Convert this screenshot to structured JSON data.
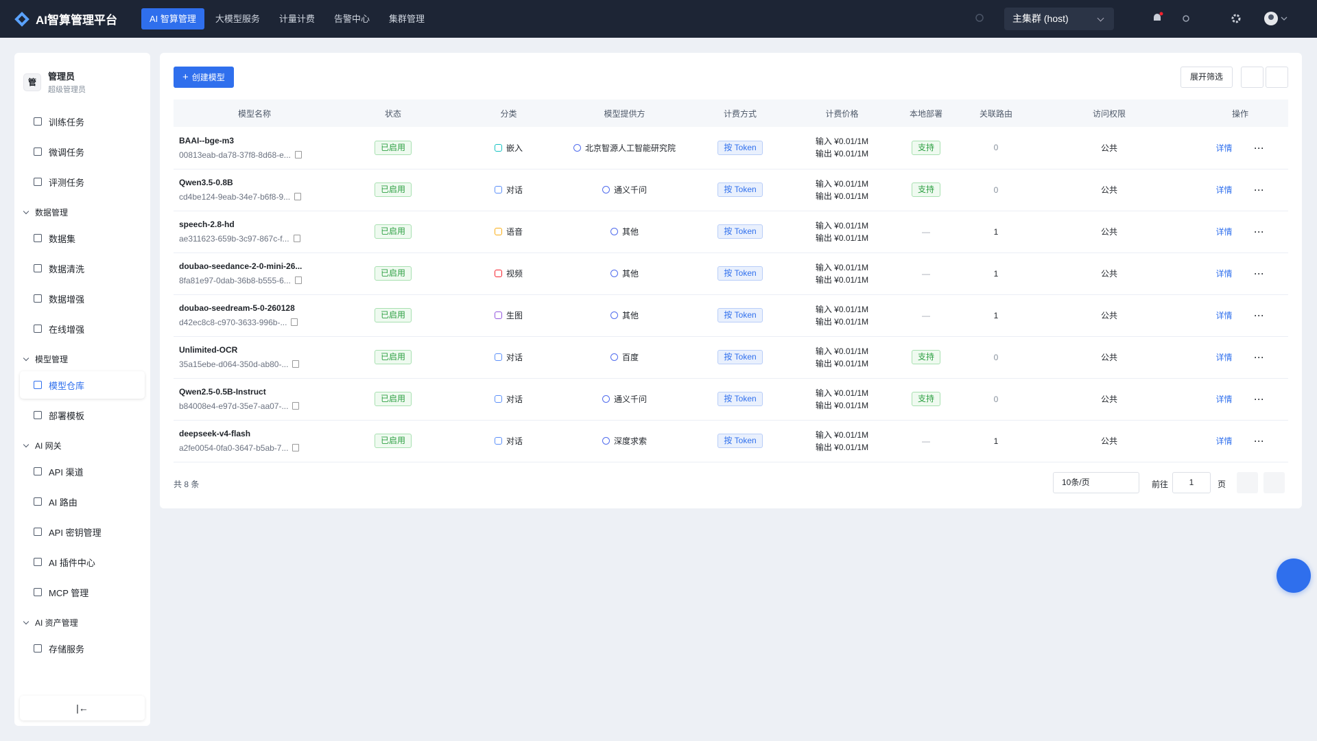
{
  "header": {
    "logo": "AI智算管理平台",
    "nav": [
      "AI 智算管理",
      "大模型服务",
      "计量计费",
      "告警中心",
      "集群管理"
    ],
    "cluster": "主集群 (host)"
  },
  "sidebar": {
    "avatar": "管",
    "user": "管理员",
    "role": "超级管理员",
    "top_items": [
      "训练任务",
      "微调任务",
      "评测任务"
    ],
    "groups": [
      {
        "title": "数据管理",
        "items": [
          "数据集",
          "数据清洗",
          "数据增强",
          "在线增强"
        ]
      },
      {
        "title": "模型管理",
        "items": [
          "模型仓库",
          "部署模板"
        ]
      },
      {
        "title": "AI 网关",
        "items": [
          "API 渠道",
          "AI 路由",
          "API 密钥管理",
          "AI 插件中心",
          "MCP 管理"
        ]
      },
      {
        "title": "AI 资产管理",
        "items": [
          "存储服务"
        ]
      }
    ]
  },
  "toolbar": {
    "create": "创建模型",
    "filter": "展开筛选"
  },
  "table": {
    "columns": [
      "模型名称",
      "状态",
      "分类",
      "模型提供方",
      "计费方式",
      "计费价格",
      "本地部署",
      "关联路由",
      "访问权限",
      "操作"
    ],
    "rows": [
      {
        "name": "BAAI--bge-m3",
        "id": "00813eab-da78-37f8-8d68-e...",
        "status": "已启用",
        "category": "嵌入",
        "provider": "北京智源人工智能研究院",
        "billing": "按 Token",
        "price_in": "输入 ¥0.01/1M",
        "price_out": "输出 ¥0.01/1M",
        "local": "支持",
        "routes": 0,
        "access": "公共",
        "action": "详情"
      },
      {
        "name": "Qwen3.5-0.8B",
        "id": "cd4be124-9eab-34e7-b6f8-9...",
        "status": "已启用",
        "category": "对话",
        "provider": "通义千问",
        "billing": "按 Token",
        "price_in": "输入 ¥0.01/1M",
        "price_out": "输出 ¥0.01/1M",
        "local": "支持",
        "routes": 0,
        "access": "公共",
        "action": "详情"
      },
      {
        "name": "speech-2.8-hd",
        "id": "ae311623-659b-3c97-867c-f...",
        "status": "已启用",
        "category": "语音",
        "provider": "其他",
        "billing": "按 Token",
        "price_in": "输入 ¥0.01/1M",
        "price_out": "输出 ¥0.01/1M",
        "local": "—",
        "routes": 1,
        "access": "公共",
        "action": "详情"
      },
      {
        "name": "doubao-seedance-2-0-mini-26...",
        "id": "8fa81e97-0dab-36b8-b555-6...",
        "status": "已启用",
        "category": "视频",
        "provider": "其他",
        "billing": "按 Token",
        "price_in": "输入 ¥0.01/1M",
        "price_out": "输出 ¥0.01/1M",
        "local": "—",
        "routes": 1,
        "access": "公共",
        "action": "详情"
      },
      {
        "name": "doubao-seedream-5-0-260128",
        "id": "d42ec8c8-c970-3633-996b-...",
        "status": "已启用",
        "category": "生图",
        "provider": "其他",
        "billing": "按 Token",
        "price_in": "输入 ¥0.01/1M",
        "price_out": "输出 ¥0.01/1M",
        "local": "—",
        "routes": 1,
        "access": "公共",
        "action": "详情"
      },
      {
        "name": "Unlimited-OCR",
        "id": "35a15ebe-d064-350d-ab80-...",
        "status": "已启用",
        "category": "对话",
        "provider": "百度",
        "billing": "按 Token",
        "price_in": "输入 ¥0.01/1M",
        "price_out": "输出 ¥0.01/1M",
        "local": "支持",
        "routes": 0,
        "access": "公共",
        "action": "详情"
      },
      {
        "name": "Qwen2.5-0.5B-Instruct",
        "id": "b84008e4-e97d-35e7-aa07-...",
        "status": "已启用",
        "category": "对话",
        "provider": "通义千问",
        "billing": "按 Token",
        "price_in": "输入 ¥0.01/1M",
        "price_out": "输出 ¥0.01/1M",
        "local": "支持",
        "routes": 0,
        "access": "公共",
        "action": "详情"
      },
      {
        "name": "deepseek-v4-flash",
        "id": "a2fe0054-0fa0-3647-b5ab-7...",
        "status": "已启用",
        "category": "对话",
        "provider": "深度求索",
        "billing": "按 Token",
        "price_in": "输入 ¥0.01/1M",
        "price_out": "输出 ¥0.01/1M",
        "local": "—",
        "routes": 1,
        "access": "公共",
        "action": "详情"
      }
    ]
  },
  "pagination": {
    "total": "共 8 条",
    "page_size": "10条/页",
    "goto": "前往",
    "page": 1,
    "page_unit": "页"
  }
}
